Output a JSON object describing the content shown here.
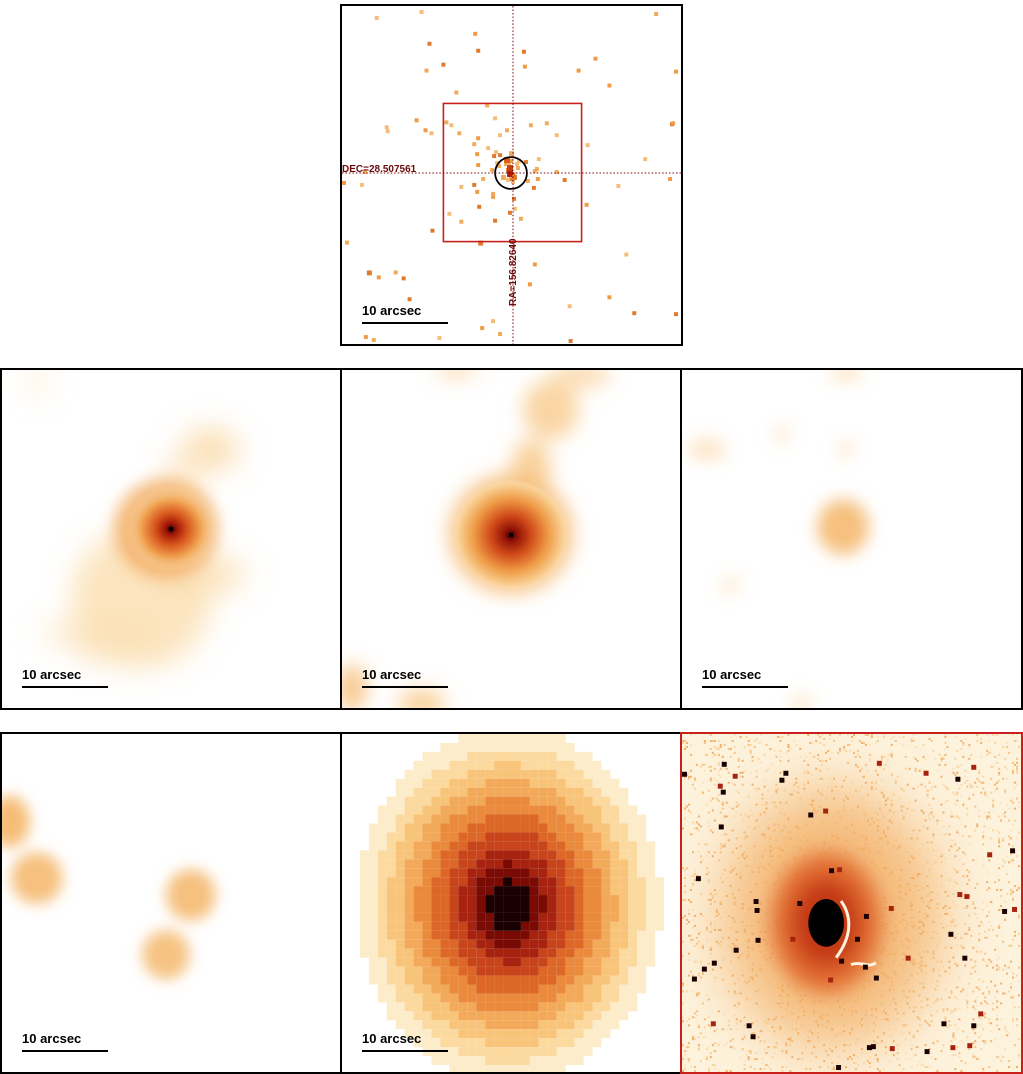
{
  "panels": {
    "xray": {
      "dec_label": "DEC=28.507561",
      "ra_label": "RA=156.82640",
      "scale_label": "10 arcsec"
    },
    "row2": [
      {
        "scale_label": "10 arcsec"
      },
      {
        "scale_label": "10 arcsec"
      },
      {
        "scale_label": "10 arcsec"
      }
    ],
    "row3": [
      {
        "scale_label": "10 arcsec"
      },
      {
        "scale_label": "10 arcsec"
      }
    ]
  },
  "colors": {
    "frame": "#000000",
    "highlight_frame": "#c8201a",
    "crosshair": "#7a0000",
    "colormap": [
      "#ffffff",
      "#fde7c2",
      "#f8c77e",
      "#ef9a45",
      "#db5a1c",
      "#b21d0b",
      "#3a0000"
    ]
  }
}
